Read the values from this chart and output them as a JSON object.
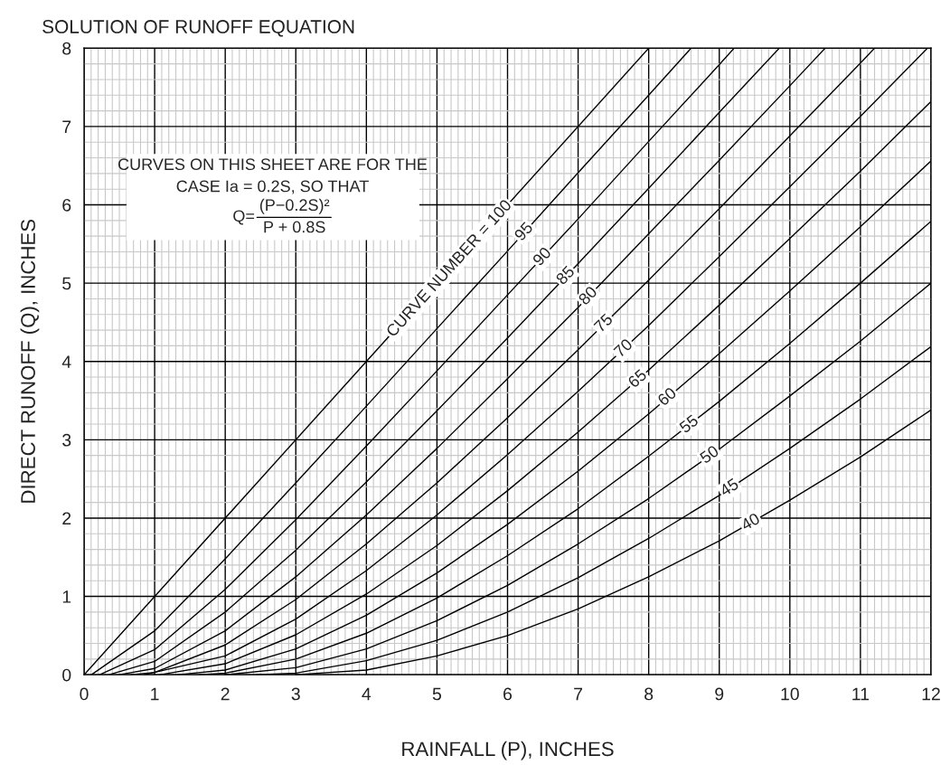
{
  "chart_data": {
    "type": "line",
    "title": "SOLUTION OF RUNOFF EQUATION",
    "xlabel": "RAINFALL (P), INCHES",
    "ylabel": "DIRECT RUNOFF (Q), INCHES",
    "xlim": [
      0,
      12
    ],
    "ylim": [
      0,
      8
    ],
    "xticks": [
      0,
      1,
      2,
      3,
      4,
      5,
      6,
      7,
      8,
      9,
      10,
      11,
      12
    ],
    "yticks": [
      0,
      1,
      2,
      3,
      4,
      5,
      6,
      7,
      8
    ],
    "grid": true,
    "marker": "none",
    "line_style": "solid",
    "series": [
      {
        "color": "#000000",
        "x": [
          0,
          8
        ],
        "values": [
          0,
          8
        ]
      },
      {
        "color": "#000000",
        "x": [
          0.105,
          1,
          2,
          3,
          4,
          5,
          6,
          7,
          8,
          8.6
        ],
        "values": [
          0,
          0.56,
          1.48,
          2.45,
          3.43,
          4.42,
          5.41,
          6.41,
          7.4,
          8.0
        ]
      },
      {
        "color": "#000000",
        "x": [
          0.222,
          1,
          2,
          3,
          4,
          5,
          6,
          7,
          8,
          9,
          9.21
        ],
        "values": [
          0,
          0.32,
          1.09,
          1.98,
          2.92,
          3.88,
          4.85,
          5.82,
          6.81,
          7.79,
          8.0
        ]
      },
      {
        "color": "#000000",
        "x": [
          0.353,
          1,
          2,
          3,
          4,
          5,
          6,
          7,
          8,
          9,
          9.85
        ],
        "values": [
          0,
          0.17,
          0.8,
          1.59,
          2.46,
          3.37,
          4.3,
          5.25,
          6.21,
          7.18,
          8.0
        ]
      },
      {
        "color": "#000000",
        "x": [
          0.5,
          1,
          2,
          3,
          4,
          5,
          6,
          7,
          8,
          9,
          10,
          10.5
        ],
        "values": [
          0,
          0.08,
          0.56,
          1.25,
          2.04,
          2.89,
          3.78,
          4.69,
          5.63,
          6.57,
          7.52,
          8.0
        ]
      },
      {
        "color": "#000000",
        "x": [
          0.667,
          1,
          2,
          3,
          4,
          5,
          6,
          7,
          8,
          9,
          10,
          11,
          11.2
        ],
        "values": [
          0,
          0.03,
          0.38,
          0.96,
          1.67,
          2.45,
          3.28,
          4.15,
          5.04,
          5.95,
          6.88,
          7.81,
          8.0
        ]
      },
      {
        "color": "#000000",
        "x": [
          0.857,
          2,
          3,
          4,
          5,
          6,
          7,
          8,
          9,
          10,
          11,
          11.95
        ],
        "values": [
          0,
          0.24,
          0.71,
          1.33,
          2.04,
          2.81,
          3.62,
          4.46,
          5.34,
          6.23,
          7.13,
          8.0
        ]
      },
      {
        "color": "#000000",
        "x": [
          1.077,
          2,
          3,
          4,
          5,
          6,
          7,
          8,
          9,
          10,
          11,
          12
        ],
        "values": [
          0,
          0.14,
          0.51,
          1.03,
          1.65,
          2.35,
          3.1,
          3.89,
          4.72,
          5.57,
          6.43,
          7.32
        ]
      },
      {
        "color": "#000000",
        "x": [
          1.333,
          2,
          3,
          4,
          5,
          6,
          7,
          8,
          9,
          10,
          11,
          12
        ],
        "values": [
          0,
          0.06,
          0.33,
          0.76,
          1.3,
          1.92,
          2.6,
          3.33,
          4.1,
          4.9,
          5.72,
          6.56
        ]
      },
      {
        "color": "#000000",
        "x": [
          1.636,
          2,
          3,
          4,
          5,
          6,
          7,
          8,
          9,
          10,
          11,
          12
        ],
        "values": [
          0,
          0.02,
          0.2,
          0.53,
          0.98,
          1.52,
          2.12,
          2.79,
          3.49,
          4.23,
          5.0,
          5.79
        ]
      },
      {
        "color": "#000000",
        "x": [
          2,
          3,
          4,
          5,
          6,
          7,
          8,
          9,
          10,
          11,
          12
        ],
        "values": [
          0,
          0.09,
          0.33,
          0.69,
          1.14,
          1.67,
          2.25,
          2.88,
          3.56,
          4.26,
          5.0
        ]
      },
      {
        "color": "#000000",
        "x": [
          2.444,
          3,
          4,
          5,
          6,
          7,
          8,
          9,
          10,
          11,
          12
        ],
        "values": [
          0,
          0.02,
          0.18,
          0.44,
          0.8,
          1.24,
          1.74,
          2.29,
          2.89,
          3.52,
          4.19
        ]
      },
      {
        "color": "#000000",
        "x": [
          3,
          4,
          5,
          6,
          7,
          8,
          9,
          10,
          11,
          12
        ],
        "values": [
          0,
          0.06,
          0.24,
          0.5,
          0.84,
          1.25,
          1.71,
          2.23,
          2.78,
          3.38
        ]
      }
    ],
    "annotations": [
      "CURVES ON THIS SHEET ARE FOR THE",
      "CASE Ia = 0.2S, SO THAT",
      "Q=",
      "(P−0.2S)²",
      "P + 0.8S",
      {
        "text": "CURVE NUMBER = 100",
        "x": 5.18,
        "y": 5.18
      },
      {
        "text": "95",
        "x": 6.24,
        "y": 5.65
      },
      {
        "text": "90",
        "x": 6.5,
        "y": 5.33
      },
      {
        "text": "85",
        "x": 6.83,
        "y": 5.09
      },
      {
        "text": "80",
        "x": 7.15,
        "y": 4.83
      },
      {
        "text": "75",
        "x": 7.37,
        "y": 4.48
      },
      {
        "text": "70",
        "x": 7.65,
        "y": 4.16
      },
      {
        "text": "65",
        "x": 7.85,
        "y": 3.77
      },
      {
        "text": "60",
        "x": 8.27,
        "y": 3.54
      },
      {
        "text": "55",
        "x": 8.58,
        "y": 3.19
      },
      {
        "text": "50",
        "x": 8.87,
        "y": 2.8
      },
      {
        "text": "45",
        "x": 9.15,
        "y": 2.38
      },
      {
        "text": "40",
        "x": 9.45,
        "y": 1.94
      }
    ]
  }
}
